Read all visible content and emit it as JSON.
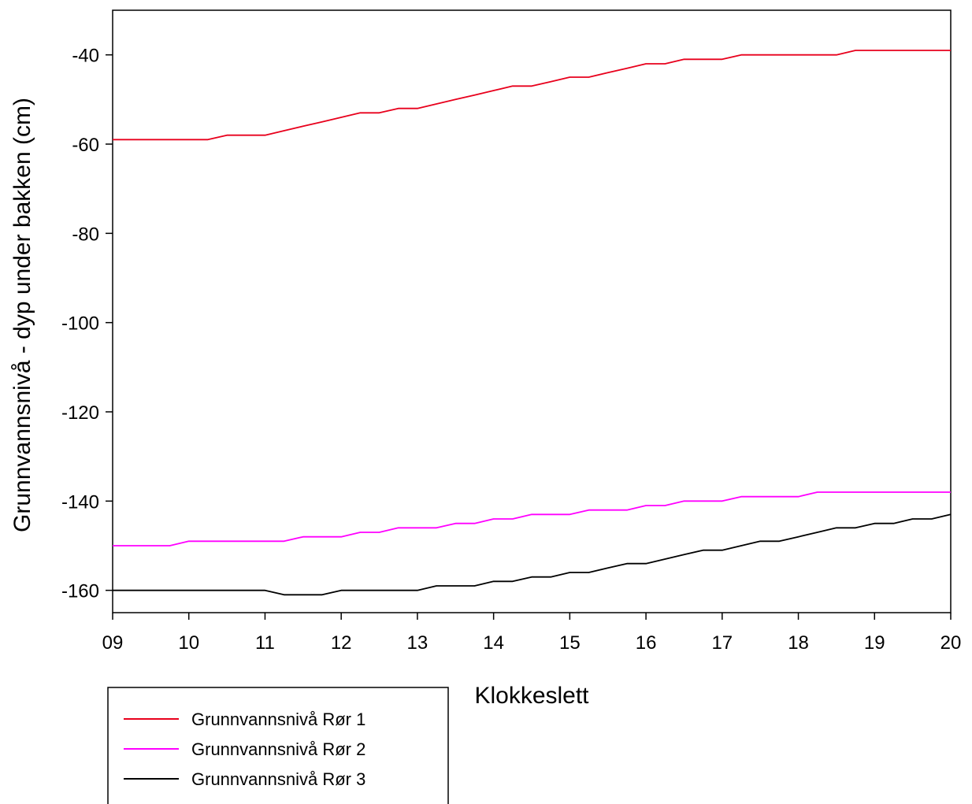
{
  "chart_data": {
    "type": "line",
    "title": "",
    "xlabel": "Klokkeslett",
    "ylabel": "Grunnvannsnivå - dyp under bakken (cm)",
    "xlim": [
      9,
      20
    ],
    "ylim": [
      -165,
      -30
    ],
    "x_ticks": [
      9,
      10,
      11,
      12,
      13,
      14,
      15,
      16,
      17,
      18,
      19,
      20
    ],
    "x_tick_labels": [
      "09",
      "10",
      "11",
      "12",
      "13",
      "14",
      "15",
      "16",
      "17",
      "18",
      "19",
      "20"
    ],
    "y_ticks": [
      -40,
      -60,
      -80,
      -100,
      -120,
      -140,
      -160
    ],
    "y_tick_labels": [
      "-40",
      "-60",
      "-80",
      "-100",
      "-120",
      "-140",
      "-160"
    ],
    "grid": false,
    "legend_position": "bottom-left",
    "series": [
      {
        "name": "Grunnvannsnivå Rør 1",
        "color": "#e8001c",
        "x": [
          9,
          9.25,
          9.5,
          9.75,
          10,
          10.25,
          10.5,
          10.75,
          11,
          11.25,
          11.5,
          11.75,
          12,
          12.25,
          12.5,
          12.75,
          13,
          13.25,
          13.5,
          13.75,
          14,
          14.25,
          14.5,
          14.75,
          15,
          15.25,
          15.5,
          15.75,
          16,
          16.25,
          16.5,
          16.75,
          17,
          17.25,
          17.5,
          17.75,
          18,
          18.25,
          18.5,
          18.75,
          19,
          19.25,
          19.5,
          19.75,
          20
        ],
        "y": [
          -59,
          -59,
          -59,
          -59,
          -59,
          -59,
          -58,
          -58,
          -58,
          -57,
          -56,
          -55,
          -54,
          -53,
          -53,
          -52,
          -52,
          -51,
          -50,
          -49,
          -48,
          -47,
          -47,
          -46,
          -45,
          -45,
          -44,
          -43,
          -42,
          -42,
          -41,
          -41,
          -41,
          -40,
          -40,
          -40,
          -40,
          -40,
          -40,
          -39,
          -39,
          -39,
          -39,
          -39,
          -39
        ]
      },
      {
        "name": "Grunnvannsnivå Rør 2",
        "color": "#ff00ff",
        "x": [
          9,
          9.25,
          9.5,
          9.75,
          10,
          10.25,
          10.5,
          10.75,
          11,
          11.25,
          11.5,
          11.75,
          12,
          12.25,
          12.5,
          12.75,
          13,
          13.25,
          13.5,
          13.75,
          14,
          14.25,
          14.5,
          14.75,
          15,
          15.25,
          15.5,
          15.75,
          16,
          16.25,
          16.5,
          16.75,
          17,
          17.25,
          17.5,
          17.75,
          18,
          18.25,
          18.5,
          18.75,
          19,
          19.25,
          19.5,
          19.75,
          20
        ],
        "y": [
          -150,
          -150,
          -150,
          -150,
          -149,
          -149,
          -149,
          -149,
          -149,
          -149,
          -148,
          -148,
          -148,
          -147,
          -147,
          -146,
          -146,
          -146,
          -145,
          -145,
          -144,
          -144,
          -143,
          -143,
          -143,
          -142,
          -142,
          -142,
          -141,
          -141,
          -140,
          -140,
          -140,
          -139,
          -139,
          -139,
          -139,
          -138,
          -138,
          -138,
          -138,
          -138,
          -138,
          -138,
          -138
        ]
      },
      {
        "name": "Grunnvannsnivå Rør 3",
        "color": "#000000",
        "x": [
          9,
          9.25,
          9.5,
          9.75,
          10,
          10.25,
          10.5,
          10.75,
          11,
          11.25,
          11.5,
          11.75,
          12,
          12.25,
          12.5,
          12.75,
          13,
          13.25,
          13.5,
          13.75,
          14,
          14.25,
          14.5,
          14.75,
          15,
          15.25,
          15.5,
          15.75,
          16,
          16.25,
          16.5,
          16.75,
          17,
          17.25,
          17.5,
          17.75,
          18,
          18.25,
          18.5,
          18.75,
          19,
          19.25,
          19.5,
          19.75,
          20
        ],
        "y": [
          -160,
          -160,
          -160,
          -160,
          -160,
          -160,
          -160,
          -160,
          -160,
          -161,
          -161,
          -161,
          -160,
          -160,
          -160,
          -160,
          -160,
          -159,
          -159,
          -159,
          -158,
          -158,
          -157,
          -157,
          -156,
          -156,
          -155,
          -154,
          -154,
          -153,
          -152,
          -151,
          -151,
          -150,
          -149,
          -149,
          -148,
          -147,
          -146,
          -146,
          -145,
          -145,
          -144,
          -144,
          -143
        ]
      }
    ]
  }
}
